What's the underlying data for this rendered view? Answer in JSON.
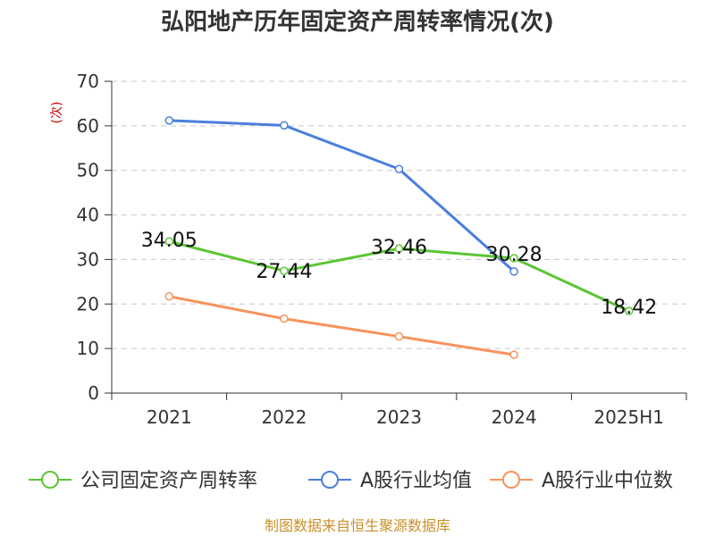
{
  "chart_data": {
    "type": "line",
    "title": "弘阳地产历年固定资产周转率情况(次)",
    "ylabel": "(次)",
    "xlabel": "",
    "categories": [
      "2021",
      "2022",
      "2023",
      "2024",
      "2025H1"
    ],
    "ylim": [
      0,
      70
    ],
    "yticks": [
      0,
      10,
      20,
      30,
      40,
      50,
      60,
      70
    ],
    "grid": true,
    "legend_position": "bottom",
    "series": [
      {
        "name": "公司固定资产周转率",
        "color": "#5cc536",
        "values": [
          34.05,
          27.44,
          32.46,
          30.28,
          18.42
        ],
        "labels": [
          "34.05",
          "27.44",
          "32.46",
          "30.28",
          "18.42"
        ]
      },
      {
        "name": "A股行业均值",
        "color": "#4a7fdc",
        "values": [
          61.2,
          60.1,
          50.3,
          27.3,
          null
        ]
      },
      {
        "name": "A股行业中位数",
        "color": "#f7935c",
        "values": [
          21.7,
          16.7,
          12.7,
          8.6,
          null
        ]
      }
    ]
  },
  "source": "制图数据来自恒生聚源数据库"
}
